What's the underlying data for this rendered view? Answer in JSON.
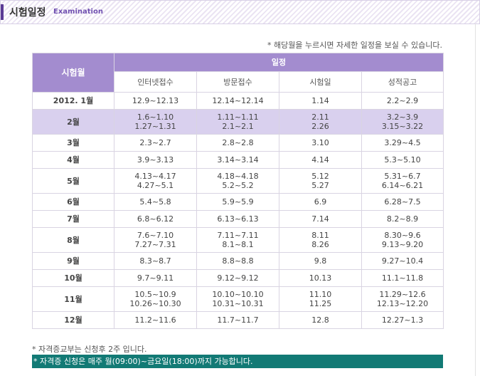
{
  "header": {
    "title": "시험일정",
    "subtitle": "Examination"
  },
  "notice": "* 해당월을 누르시면 자세한 일정을 보실 수 있습니다.",
  "table": {
    "month_header": "시험월",
    "group_header": "일정",
    "columns": [
      "인터넷접수",
      "방문접수",
      "시험일",
      "성적공고"
    ],
    "rows": [
      {
        "month": "2012. 1월",
        "cells": [
          [
            "12.9~12.13"
          ],
          [
            "12.14~12.14"
          ],
          [
            "1.14"
          ],
          [
            "2.2~2.9"
          ]
        ]
      },
      {
        "month": "2월",
        "cells": [
          [
            "1.6~1.10",
            "1.27~1.31"
          ],
          [
            "1.11~1.11",
            "2.1~2.1"
          ],
          [
            "2.11",
            "2.26"
          ],
          [
            "3.2~3.9",
            "3.15~3.22"
          ]
        ]
      },
      {
        "month": "3월",
        "cells": [
          [
            "2.3~2.7"
          ],
          [
            "2.8~2.8"
          ],
          [
            "3.10"
          ],
          [
            "3.29~4.5"
          ]
        ]
      },
      {
        "month": "4월",
        "cells": [
          [
            "3.9~3.13"
          ],
          [
            "3.14~3.14"
          ],
          [
            "4.14"
          ],
          [
            "5.3~5.10"
          ]
        ]
      },
      {
        "month": "5월",
        "cells": [
          [
            "4.13~4.17",
            "4.27~5.1"
          ],
          [
            "4.18~4.18",
            "5.2~5.2"
          ],
          [
            "5.12",
            "5.27"
          ],
          [
            "5.31~6.7",
            "6.14~6.21"
          ]
        ]
      },
      {
        "month": "6월",
        "cells": [
          [
            "5.4~5.8"
          ],
          [
            "5.9~5.9"
          ],
          [
            "6.9"
          ],
          [
            "6.28~7.5"
          ]
        ]
      },
      {
        "month": "7월",
        "cells": [
          [
            "6.8~6.12"
          ],
          [
            "6.13~6.13"
          ],
          [
            "7.14"
          ],
          [
            "8.2~8.9"
          ]
        ]
      },
      {
        "month": "8월",
        "cells": [
          [
            "7.6~7.10",
            "7.27~7.31"
          ],
          [
            "7.11~7.11",
            "8.1~8.1"
          ],
          [
            "8.11",
            "8.26"
          ],
          [
            "8.30~9.6",
            "9.13~9.20"
          ]
        ]
      },
      {
        "month": "9월",
        "cells": [
          [
            "8.3~8.7"
          ],
          [
            "8.8~8.8"
          ],
          [
            "9.8"
          ],
          [
            "9.27~10.4"
          ]
        ]
      },
      {
        "month": "10월",
        "cells": [
          [
            "9.7~9.11"
          ],
          [
            "9.12~9.12"
          ],
          [
            "10.13"
          ],
          [
            "11.1~11.8"
          ]
        ]
      },
      {
        "month": "11월",
        "cells": [
          [
            "10.5~10.9",
            "10.26~10.30"
          ],
          [
            "10.10~10.10",
            "10.31~10.31"
          ],
          [
            "11.10",
            "11.25"
          ],
          [
            "11.29~12.6",
            "12.13~12.20"
          ]
        ]
      },
      {
        "month": "12월",
        "cells": [
          [
            "11.2~11.6"
          ],
          [
            "11.7~11.7"
          ],
          [
            "12.8"
          ],
          [
            "12.27~1.3"
          ]
        ]
      }
    ],
    "highlighted_month": "2월"
  },
  "footnotes": {
    "issue": "* 자격증교부는 신청후 2주 입니다.",
    "apply": "* 자격증 신청은 매주 월(09:00)~금요일(18:00)까지 가능합니다."
  },
  "colors": {
    "header_purple": "#a38ccf",
    "highlight_row": "#d9d0ee",
    "footer_teal": "#127a75",
    "accent": "#5a3a94"
  }
}
